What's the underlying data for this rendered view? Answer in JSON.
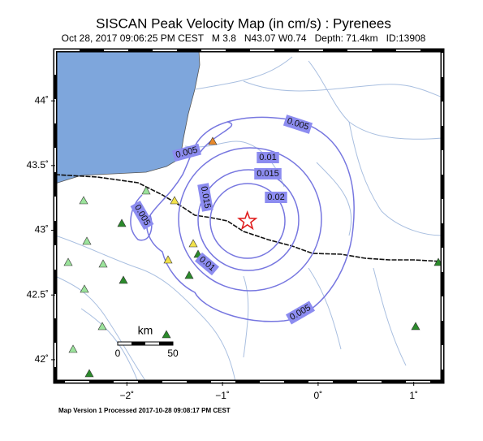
{
  "map": {
    "title": "SISCAN Peak Velocity Map (in cm/s) : Pyrenees",
    "subtitle": "Oct 28, 2017 09:06:25 PM CEST   M 3.8   N43.07 W0.74   Depth: 71.4km   ID:13908",
    "footer": "Map Version 1 Processed 2017-10-28 09:08:17 PM CEST",
    "xlim": [
      -2.75,
      1.3
    ],
    "ylim": [
      41.83,
      44.39
    ],
    "xticks": [
      {
        "value": -2,
        "label": "−2˚"
      },
      {
        "value": -1,
        "label": "−1˚"
      },
      {
        "value": 0,
        "label": "0˚"
      },
      {
        "value": 1,
        "label": "1˚"
      }
    ],
    "yticks": [
      {
        "value": 42,
        "label": "42˚"
      },
      {
        "value": 42.5,
        "label": "42.5˚"
      },
      {
        "value": 43,
        "label": "43˚"
      },
      {
        "value": 43.5,
        "label": "43.5˚"
      },
      {
        "value": 44,
        "label": "44˚"
      }
    ],
    "epicenter": {
      "lat": 43.07,
      "lon": -0.74
    },
    "scale_bar": {
      "unit": "km",
      "start": 0,
      "end": 50
    },
    "contour_labels": [
      0.005,
      0.005,
      0.01,
      0.015,
      0.02,
      0.015,
      0.005,
      0.01,
      0.005
    ]
  }
}
